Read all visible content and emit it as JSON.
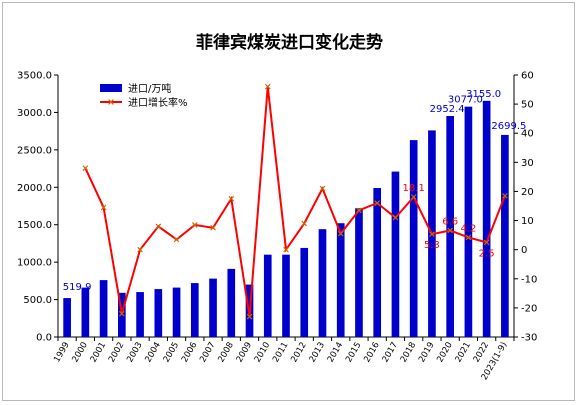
{
  "chart_data": {
    "type": "bar",
    "title": "菲律宾煤炭进口变化走势",
    "categories": [
      "1999",
      "2000",
      "2001",
      "2002",
      "2003",
      "2004",
      "2005",
      "2006",
      "2007",
      "2008",
      "2009",
      "2010",
      "2011",
      "2012",
      "2013",
      "2014",
      "2015",
      "2016",
      "2017",
      "2018",
      "2019",
      "2020",
      "2021",
      "2022",
      "2023(1-9)"
    ],
    "y_left": {
      "ticks": [
        "0.0",
        "500.0",
        "1000.0",
        "1500.0",
        "2000.0",
        "2500.0",
        "3000.0",
        "3500.0"
      ],
      "ylim": [
        0,
        3500
      ]
    },
    "y_right": {
      "ticks": [
        "-30",
        "-20",
        "-10",
        "0",
        "10",
        "20",
        "30",
        "40",
        "50",
        "60"
      ],
      "ylim": [
        -30,
        60
      ]
    },
    "series": [
      {
        "name": "进口/万吨",
        "kind": "bar",
        "axis": "left",
        "color": "#0000cc",
        "values": [
          519.9,
          660,
          760,
          590,
          600,
          640,
          660,
          720,
          780,
          910,
          700,
          1100,
          1100,
          1190,
          1440,
          1520,
          1720,
          1990,
          2210,
          2630,
          2760,
          2952.4,
          3077.0,
          3155.0,
          2699.5
        ]
      },
      {
        "name": "进口增长率%",
        "kind": "line",
        "axis": "right",
        "color": "#ff0000",
        "values": [
          null,
          28.0,
          14.5,
          -22.0,
          0.0,
          8.0,
          3.5,
          8.5,
          7.5,
          17.5,
          -23.0,
          56.0,
          0.0,
          9.0,
          21.0,
          5.5,
          13.5,
          16.0,
          11.0,
          18.1,
          5.3,
          6.6,
          4.2,
          2.5,
          18.5
        ]
      }
    ],
    "data_labels": [
      {
        "index": 0,
        "series": 0,
        "text": "519.9"
      },
      {
        "index": 21,
        "series": 0,
        "text": "2952.4"
      },
      {
        "index": 22,
        "series": 0,
        "text": "3077.0"
      },
      {
        "index": 23,
        "series": 0,
        "text": "3155.0"
      },
      {
        "index": 24,
        "series": 0,
        "text": "2699.5"
      },
      {
        "index": 19,
        "series": 1,
        "text": "18.1"
      },
      {
        "index": 20,
        "series": 1,
        "text": "5.3"
      },
      {
        "index": 21,
        "series": 1,
        "text": "6.6"
      },
      {
        "index": 22,
        "series": 1,
        "text": "4.2"
      },
      {
        "index": 23,
        "series": 1,
        "text": "2.5"
      }
    ],
    "legend_position": "top-left",
    "grid": false
  }
}
